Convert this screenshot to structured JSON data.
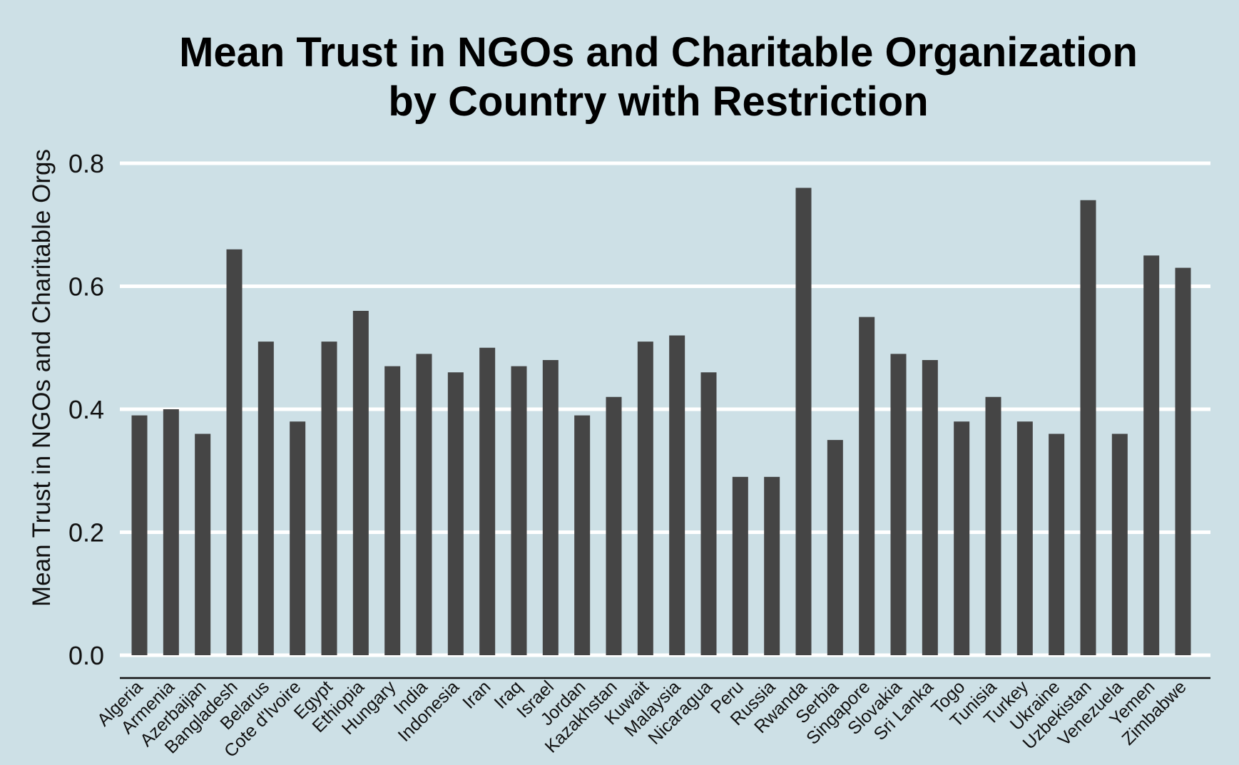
{
  "chart_data": {
    "type": "bar",
    "title_lines": [
      "Mean Trust in NGOs and Charitable Organization",
      "by Country with Restriction"
    ],
    "xlabel": "",
    "ylabel": "Mean Trust in NGOs and Charitable Orgs",
    "ylim": [
      0,
      0.8
    ],
    "yticks": [
      "0.0",
      "0.2",
      "0.4",
      "0.6",
      "0.8"
    ],
    "grid": true,
    "legend": "none",
    "bar_color": "#454545",
    "background_color": "#cde0e6",
    "categories": [
      "Algeria",
      "Armenia",
      "Azerbaijan",
      "Bangladesh",
      "Belarus",
      "Cote d'Ivoire",
      "Egypt",
      "Ethiopia",
      "Hungary",
      "India",
      "Indonesia",
      "Iran",
      "Iraq",
      "Israel",
      "Jordan",
      "Kazakhstan",
      "Kuwait",
      "Malaysia",
      "Nicaragua",
      "Peru",
      "Russia",
      "Rwanda",
      "Serbia",
      "Singapore",
      "Slovakia",
      "Sri Lanka",
      "Togo",
      "Tunisia",
      "Turkey",
      "Ukraine",
      "Uzbekistan",
      "Venezuela",
      "Yemen",
      "Zimbabwe"
    ],
    "values": [
      0.39,
      0.4,
      0.36,
      0.66,
      0.51,
      0.38,
      0.51,
      0.56,
      0.47,
      0.49,
      0.46,
      0.5,
      0.47,
      0.48,
      0.39,
      0.42,
      0.51,
      0.52,
      0.46,
      0.29,
      0.29,
      0.76,
      0.35,
      0.55,
      0.49,
      0.48,
      0.38,
      0.42,
      0.38,
      0.36,
      0.74,
      0.36,
      0.65,
      0.63
    ]
  }
}
